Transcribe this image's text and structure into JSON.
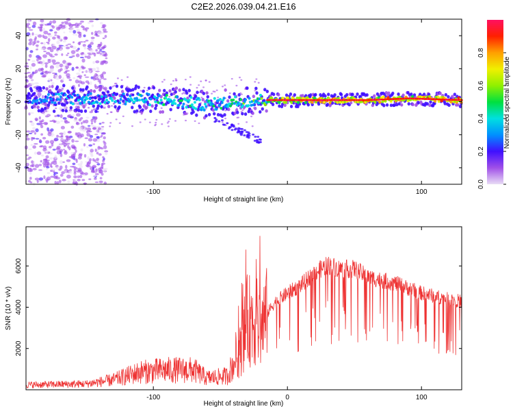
{
  "title": "C2E2.2026.039.04.21.E16",
  "chart_data": [
    {
      "type": "heatmap",
      "xlabel": "Height of straight line (km)",
      "ylabel": "Frequency (Hz)",
      "xlim": [
        -195,
        130
      ],
      "ylim": [
        -50,
        50
      ],
      "xticks": [
        -100,
        0,
        100
      ],
      "xtick_labels": [
        "-100",
        "",
        "100"
      ],
      "yticks": [
        -40,
        -20,
        0,
        20,
        40
      ],
      "ytick_labels": [
        "-40",
        "-20",
        "0",
        "20",
        "40"
      ],
      "colorbar": {
        "label": "Normalized spectral amplitude",
        "range": [
          0,
          1
        ],
        "ticks": [
          0.0,
          0.2,
          0.4,
          0.6,
          0.8
        ],
        "tick_labels": [
          "0.0",
          "0.2",
          "0.4",
          "0.6",
          "0.8"
        ],
        "colormap": [
          "#e9ddf5",
          "#a050e8",
          "#4010ff",
          "#0090ff",
          "#00e0e0",
          "#00e040",
          "#90f000",
          "#f0f000",
          "#ffa000",
          "#ff2000",
          "#ff1060"
        ]
      },
      "ridge": [
        {
          "x": -195,
          "f": 2,
          "amp": 0.3
        },
        {
          "x": -150,
          "f": 2,
          "amp": 0.35
        },
        {
          "x": -120,
          "f": 2,
          "amp": 0.4
        },
        {
          "x": -90,
          "f": 1,
          "amp": 0.45
        },
        {
          "x": -60,
          "f": -2,
          "amp": 0.45
        },
        {
          "x": -40,
          "f": 0,
          "amp": 0.5
        },
        {
          "x": -20,
          "f": 1,
          "amp": 0.55
        },
        {
          "x": 0,
          "f": 1,
          "amp": 0.8
        },
        {
          "x": 20,
          "f": 1,
          "amp": 0.85
        },
        {
          "x": 60,
          "f": 1,
          "amp": 0.9
        },
        {
          "x": 90,
          "f": 2,
          "amp": 0.85
        },
        {
          "x": 130,
          "f": 1,
          "amp": 0.9
        }
      ]
    },
    {
      "type": "line",
      "xlabel": "Height of straight line (km)",
      "ylabel": "SNR (10 * v/v)",
      "xlim": [
        -195,
        130
      ],
      "ylim": [
        0,
        7900
      ],
      "xticks": [
        -100,
        0,
        100
      ],
      "xtick_labels": [
        "-100",
        "0",
        "100"
      ],
      "yticks": [
        2000,
        4000,
        6000
      ],
      "ytick_labels": [
        "2000",
        "4000",
        "6000"
      ],
      "series": [
        {
          "name": "SNR",
          "color": "#ee3333",
          "envelope_x": [
            -195,
            -150,
            -130,
            -110,
            -90,
            -70,
            -60,
            -45,
            -35,
            -30,
            -25,
            -20,
            -15,
            -10,
            0,
            10,
            20,
            30,
            40,
            50,
            60,
            80,
            100,
            120,
            130
          ],
          "envelope_base": [
            250,
            300,
            500,
            900,
            1000,
            1000,
            600,
            700,
            2000,
            3500,
            3600,
            3200,
            3800,
            4300,
            4800,
            5200,
            5800,
            6200,
            6000,
            6000,
            5600,
            5300,
            4800,
            4500,
            4400
          ]
        }
      ]
    }
  ]
}
